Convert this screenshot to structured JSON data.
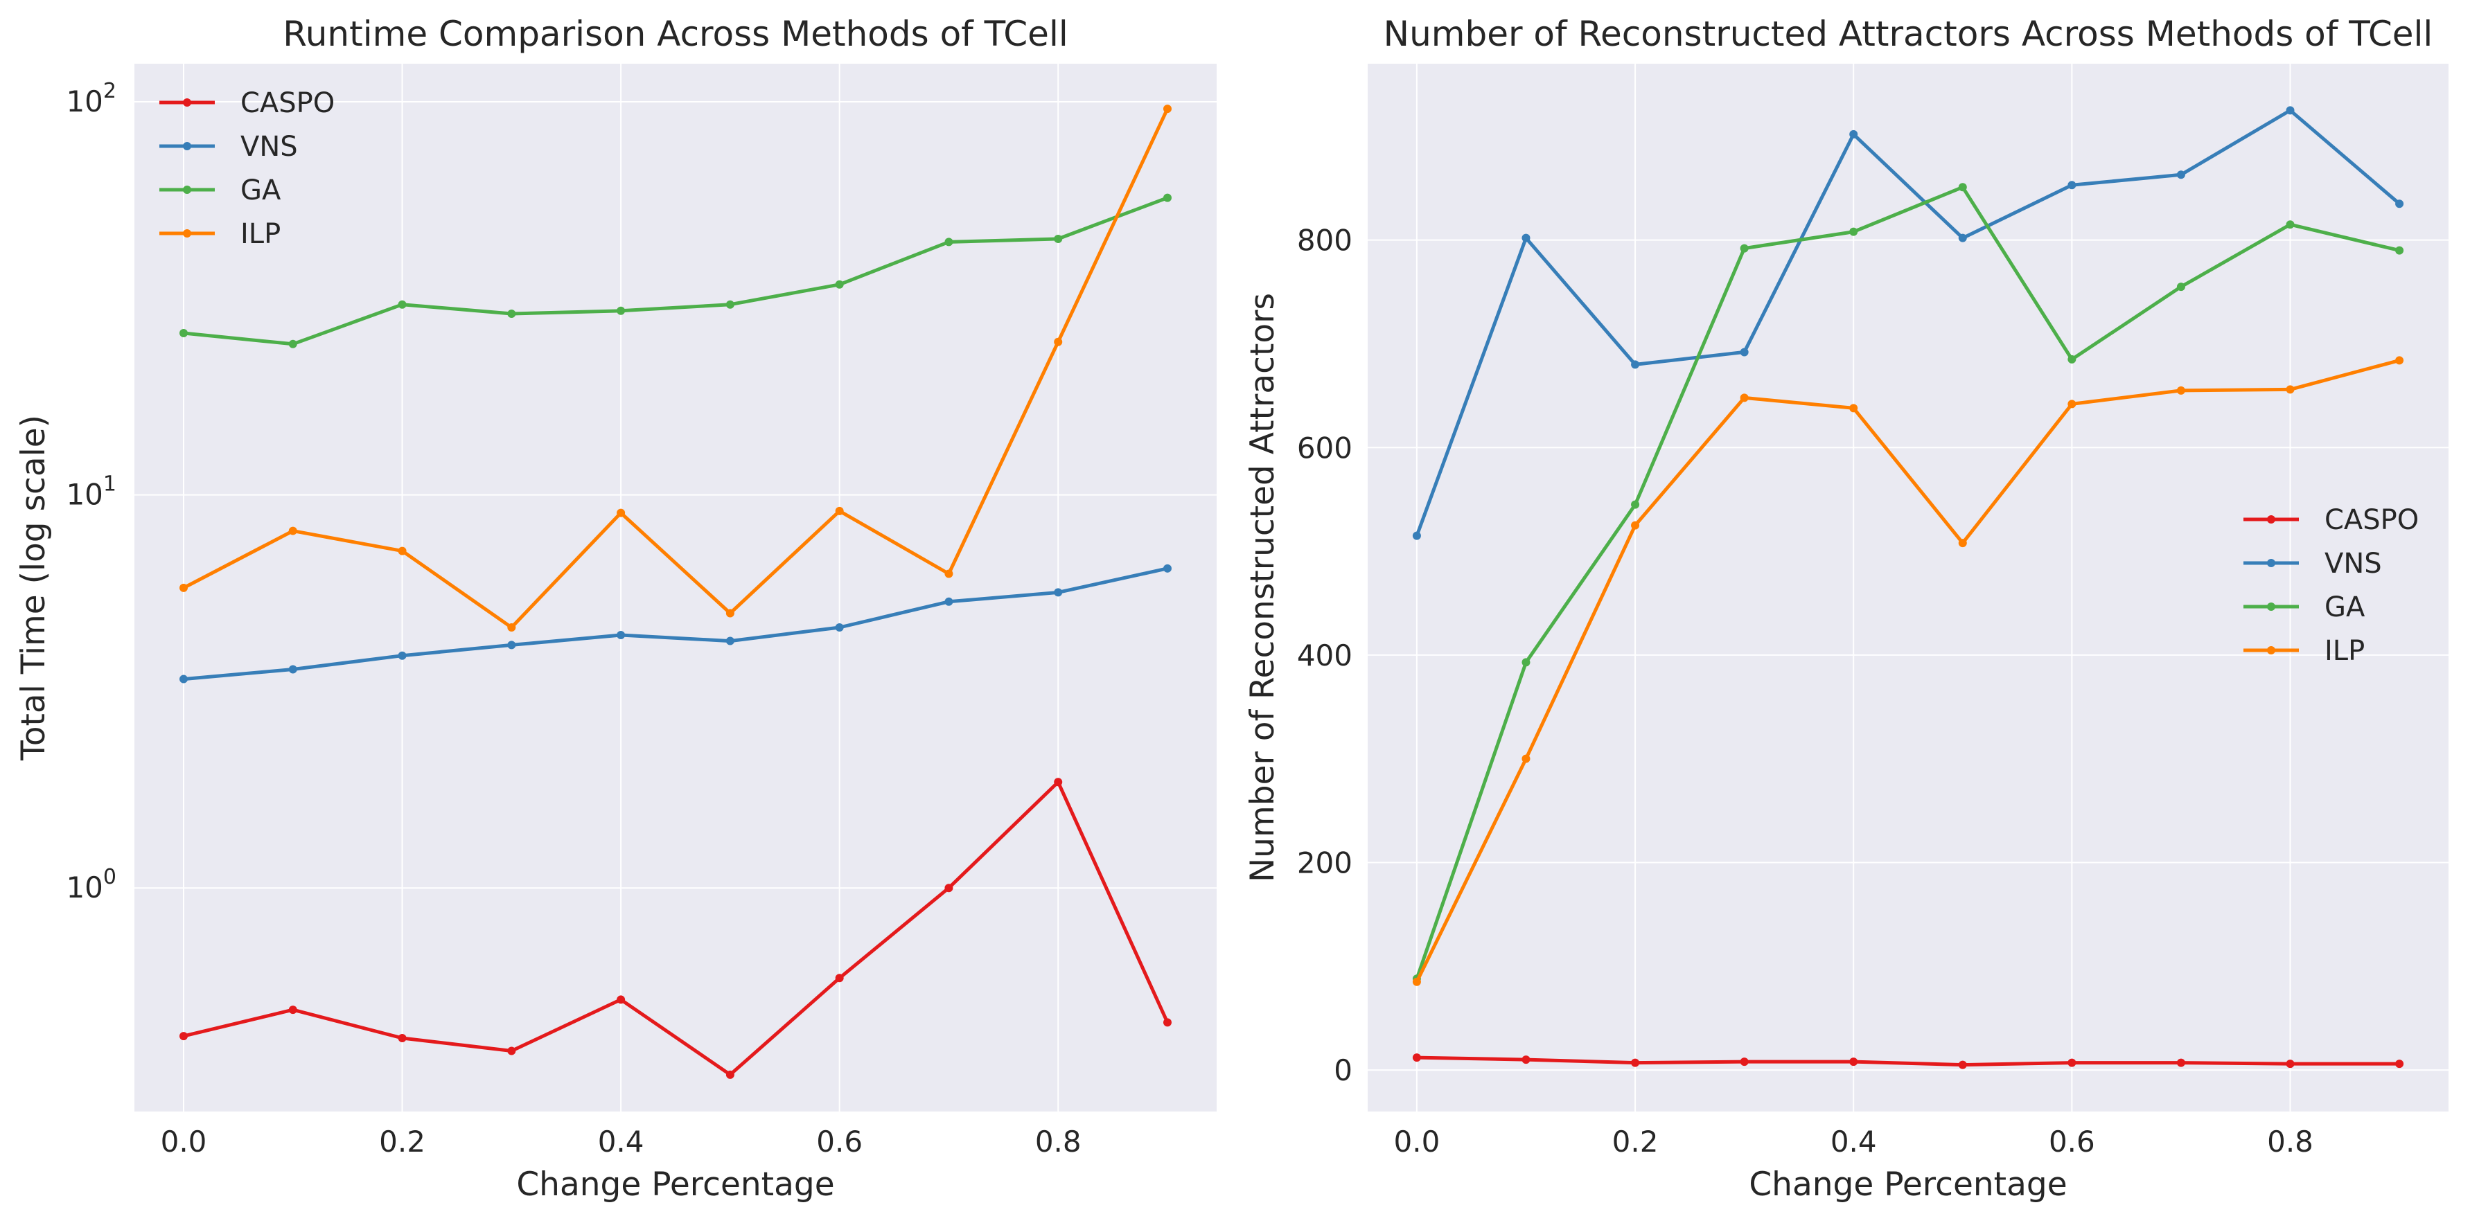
{
  "figure": {
    "background": "#ffffff"
  },
  "chart_data": [
    {
      "type": "line",
      "title": "Runtime Comparison Across Methods of TCell",
      "xlabel": "Change Percentage",
      "ylabel": "Total Time (log scale)",
      "yscale": "log",
      "x": [
        0.0,
        0.1,
        0.2,
        0.3,
        0.4,
        0.5,
        0.6,
        0.7,
        0.8,
        0.9
      ],
      "xlim": [
        -0.045,
        0.945
      ],
      "xticks": [
        0.0,
        0.2,
        0.4,
        0.6,
        0.8
      ],
      "xtick_labels": [
        "0.0",
        "0.2",
        "0.4",
        "0.6",
        "0.8"
      ],
      "ylim": [
        0.27,
        125
      ],
      "yticks": [
        1,
        10,
        100
      ],
      "ytick_labels": [
        {
          "base": "10",
          "exp": "0"
        },
        {
          "base": "10",
          "exp": "1"
        },
        {
          "base": "10",
          "exp": "2"
        }
      ],
      "grid": true,
      "legend_position": "upper-left",
      "series": [
        {
          "name": "CASPO",
          "color": "#e41a1c",
          "values": [
            0.42,
            0.49,
            0.415,
            0.385,
            0.52,
            0.335,
            0.59,
            1.0,
            1.86,
            0.455
          ]
        },
        {
          "name": "VNS",
          "color": "#377eb8",
          "values": [
            3.4,
            3.6,
            3.9,
            4.15,
            4.4,
            4.25,
            4.6,
            5.35,
            5.65,
            6.5
          ]
        },
        {
          "name": "GA",
          "color": "#4daf4a",
          "values": [
            25.8,
            24.2,
            30.5,
            28.9,
            29.4,
            30.5,
            34.3,
            44.0,
            44.8,
            57.0
          ]
        },
        {
          "name": "ILP",
          "color": "#ff7f00",
          "values": [
            5.8,
            8.1,
            7.2,
            4.6,
            9.0,
            5.0,
            9.1,
            6.3,
            24.5,
            96.0
          ]
        }
      ]
    },
    {
      "type": "line",
      "title": "Number of Reconstructed Attractors Across Methods of TCell",
      "xlabel": "Change Percentage",
      "ylabel": "Number of Reconstructed Attractors",
      "x": [
        0.0,
        0.1,
        0.2,
        0.3,
        0.4,
        0.5,
        0.6,
        0.7,
        0.8,
        0.9
      ],
      "xlim": [
        -0.045,
        0.945
      ],
      "xticks": [
        0.0,
        0.2,
        0.4,
        0.6,
        0.8
      ],
      "xtick_labels": [
        "0.0",
        "0.2",
        "0.4",
        "0.6",
        "0.8"
      ],
      "ylim": [
        -40,
        970
      ],
      "yticks": [
        0,
        200,
        400,
        600,
        800
      ],
      "ytick_labels": [
        "0",
        "200",
        "400",
        "600",
        "800"
      ],
      "grid": true,
      "legend_position": "center-right",
      "series": [
        {
          "name": "CASPO",
          "color": "#e41a1c",
          "values": [
            12,
            10,
            7,
            8,
            8,
            5,
            7,
            7,
            6,
            6
          ]
        },
        {
          "name": "VNS",
          "color": "#377eb8",
          "values": [
            515,
            802,
            680,
            692,
            902,
            802,
            853,
            863,
            925,
            835
          ]
        },
        {
          "name": "GA",
          "color": "#4daf4a",
          "values": [
            88,
            393,
            545,
            792,
            808,
            851,
            685,
            755,
            815,
            790
          ]
        },
        {
          "name": "ILP",
          "color": "#ff7f00",
          "values": [
            85,
            300,
            525,
            648,
            638,
            508,
            642,
            655,
            656,
            684
          ]
        }
      ]
    }
  ]
}
